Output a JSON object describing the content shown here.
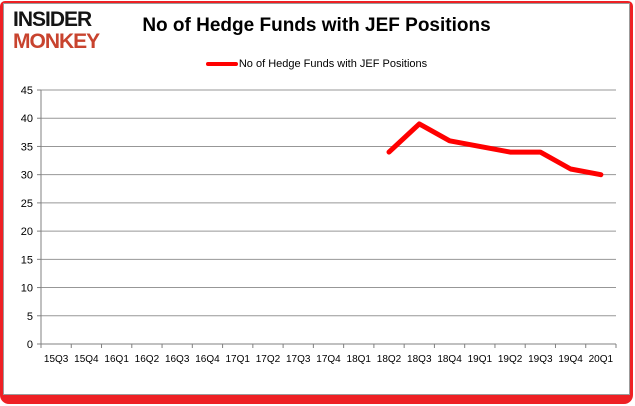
{
  "logo": {
    "line1": "INSIDER",
    "line2": "MONKEY"
  },
  "header": {
    "title": "No of Hedge Funds with JEF Positions"
  },
  "legend": {
    "label": "No of Hedge Funds with JEF Positions"
  },
  "colors": {
    "line": "#ff0000",
    "grid": "#979797",
    "axis": "#808080",
    "text": "#000000",
    "logo_black": "#141414",
    "logo_red": "#c8432e",
    "frame_red": "#ee2024"
  },
  "chart_data": {
    "type": "line",
    "title": "No of Hedge Funds with JEF Positions",
    "categories": [
      "15Q3",
      "15Q4",
      "16Q1",
      "16Q2",
      "16Q3",
      "16Q4",
      "17Q1",
      "17Q2",
      "17Q3",
      "17Q4",
      "18Q1",
      "18Q2",
      "18Q3",
      "18Q4",
      "19Q1",
      "19Q2",
      "19Q3",
      "19Q4",
      "20Q1"
    ],
    "series": [
      {
        "name": "No of Hedge Funds with JEF Positions",
        "color": "#ff0000",
        "values": [
          null,
          null,
          null,
          null,
          null,
          null,
          null,
          null,
          null,
          null,
          null,
          34,
          39,
          36,
          35,
          34,
          34,
          31,
          30
        ]
      }
    ],
    "ylim": [
      0,
      45
    ],
    "ytick_step": 5,
    "grid": "horizontal",
    "legend_position": "top"
  }
}
